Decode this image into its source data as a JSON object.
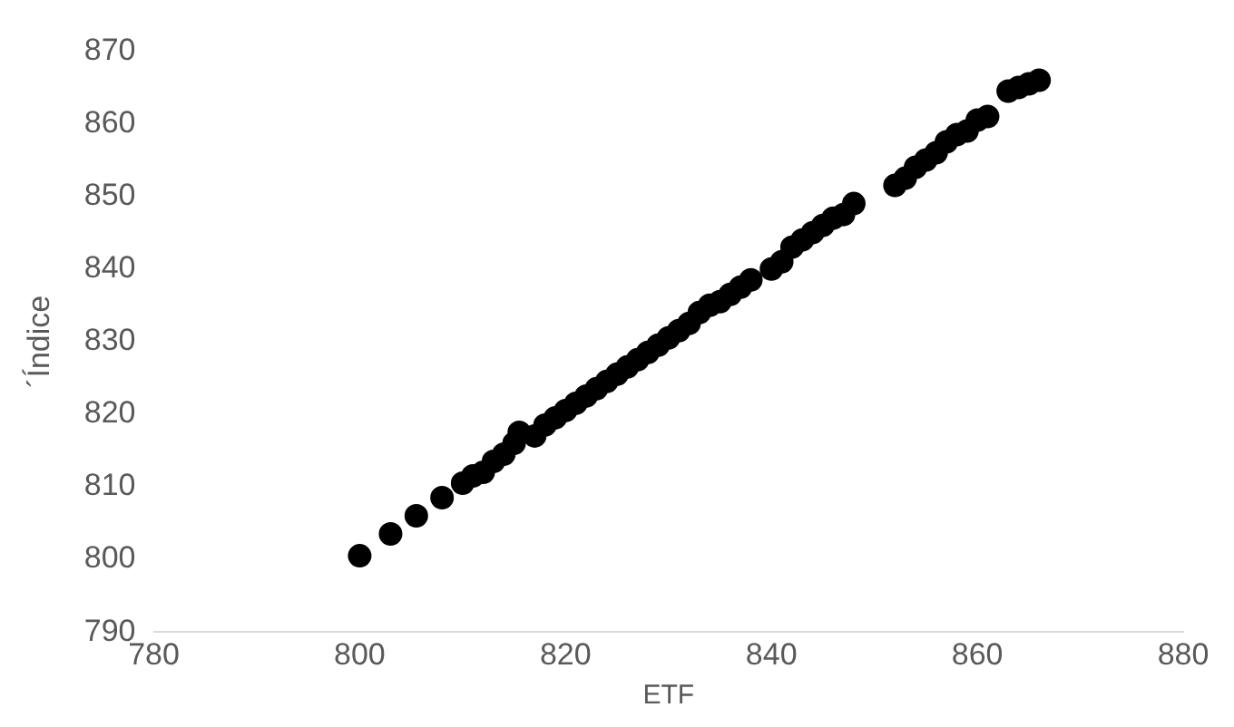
{
  "chart_data": {
    "type": "scatter",
    "xlabel": "ETF",
    "ylabel": "´Índice",
    "x": [
      800,
      803,
      805.5,
      808,
      810,
      811,
      812,
      813,
      814,
      815,
      815.5,
      817,
      818,
      819,
      820,
      821,
      822,
      823,
      824,
      825,
      826,
      827,
      828,
      829,
      830,
      831,
      832,
      833,
      834,
      835,
      836,
      837,
      838,
      840,
      841,
      842,
      843,
      844,
      845,
      846,
      847,
      848,
      852,
      853,
      854,
      855,
      856,
      857,
      858,
      859,
      860,
      861,
      863,
      864,
      865,
      866
    ],
    "series": [
      {
        "color": "#000000",
        "values": [
          800.5,
          803.5,
          806,
          808.5,
          810.5,
          811.5,
          812,
          813.5,
          814.5,
          816,
          817.5,
          817,
          818.5,
          819.5,
          820.5,
          821.5,
          822.5,
          823.5,
          824.5,
          825.5,
          826.5,
          827.5,
          828.5,
          829.5,
          830.5,
          831.5,
          832.5,
          834,
          835,
          835.5,
          836.5,
          837.5,
          838.5,
          840,
          841,
          843,
          844,
          845,
          846,
          847,
          847.5,
          849,
          851.5,
          852.5,
          854,
          855,
          856,
          857.5,
          858.5,
          859,
          860.5,
          861,
          864.5,
          865,
          865.5,
          866
        ]
      }
    ],
    "xlim": [
      780,
      880
    ],
    "xticks": [
      780,
      800,
      820,
      840,
      860,
      880
    ],
    "ylim": [
      790,
      870
    ],
    "yticks": [
      790,
      800,
      810,
      820,
      830,
      840,
      850,
      860,
      870
    ],
    "grid": false,
    "legend": false,
    "marker": "circle"
  }
}
